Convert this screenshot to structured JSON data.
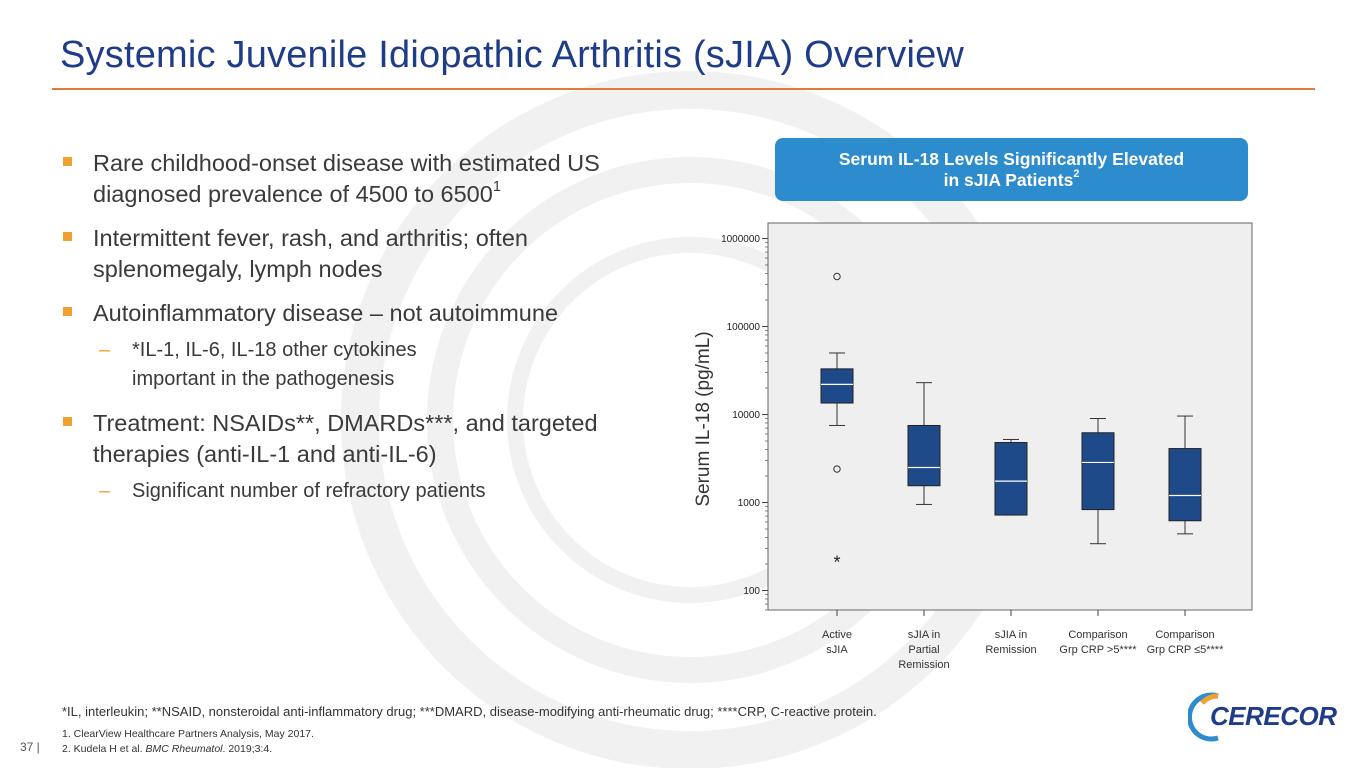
{
  "page": {
    "title": "Systemic Juvenile Idiopathic Arthritis (sJIA) Overview",
    "page_number": "37 |",
    "accent_color": "#e07b39",
    "title_color": "#1f3c88",
    "bullet_color": "#f0a030"
  },
  "bullets": [
    {
      "text": "Rare childhood-onset disease with estimated US diagnosed prevalence of 4500 to 6500",
      "sup": "1"
    },
    {
      "text": "Intermittent fever, rash, and arthritis; often splenomegaly, lymph nodes"
    },
    {
      "text": "Autoinflammatory disease – not autoimmune",
      "sub": [
        "*IL-1, IL-6, IL-18 other cytokines important in the pathogenesis"
      ]
    },
    {
      "text": "Treatment: NSAIDs**, DMARDs***, and targeted therapies (anti-IL-1 and anti-IL-6)",
      "sub": [
        "Significant number of refractory patients"
      ]
    }
  ],
  "sub_marker": "–",
  "callout": {
    "line1": "Serum IL-18 Levels Significantly Elevated",
    "line2": "in sJIA Patients",
    "sup": "2",
    "color": "#2d8ccd"
  },
  "chart_data": {
    "type": "boxplot",
    "ylabel": "Serum IL-18 (pg/mL)",
    "yscale": "log",
    "ylim": [
      60,
      1500000
    ],
    "yticks": [
      100,
      1000,
      10000,
      100000,
      1000000
    ],
    "ytick_labels": [
      "100",
      "1000",
      "10000",
      "100000",
      "1000000"
    ],
    "box_color": "#1f4a8a",
    "plot_bg": "#efefef",
    "grid": false,
    "categories": [
      {
        "label": [
          "Active",
          "sJIA"
        ],
        "min": 7500,
        "q1": 13500,
        "median": 22000,
        "q3": 33000,
        "max": 50000,
        "outliers": [
          2400,
          370000
        ],
        "extremes": [
          220
        ]
      },
      {
        "label": [
          "sJIA in",
          "Partial",
          "Remission"
        ],
        "min": 950,
        "q1": 1550,
        "median": 2500,
        "q3": 7500,
        "max": 23000,
        "outliers": [],
        "extremes": []
      },
      {
        "label": [
          "sJIA in",
          "Remission"
        ],
        "min": 720,
        "q1": 720,
        "median": 1750,
        "q3": 4800,
        "max": 5200,
        "outliers": [],
        "extremes": []
      },
      {
        "label": [
          "Comparison",
          "Grp CRP >5****"
        ],
        "min": 340,
        "q1": 830,
        "median": 2850,
        "q3": 6200,
        "max": 9000,
        "outliers": [],
        "extremes": []
      },
      {
        "label": [
          "Comparison",
          "Grp CRP ≤5****"
        ],
        "min": 440,
        "q1": 620,
        "median": 1200,
        "q3": 4100,
        "max": 9600,
        "outliers": [],
        "extremes": []
      }
    ]
  },
  "footnote": "*IL, interleukin; **NSAID, nonsteroidal anti-inflammatory drug; ***DMARD, disease-modifying anti-rheumatic drug; ****CRP, C-reactive protein.",
  "references": [
    {
      "text": "1. ClearView Healthcare Partners Analysis, May 2017."
    },
    {
      "pre": "2. Kudela H et al. ",
      "italic": "BMC Rheumatol",
      "post": ". 2019;3:4."
    }
  ],
  "logo": {
    "name": "CERECOR"
  }
}
